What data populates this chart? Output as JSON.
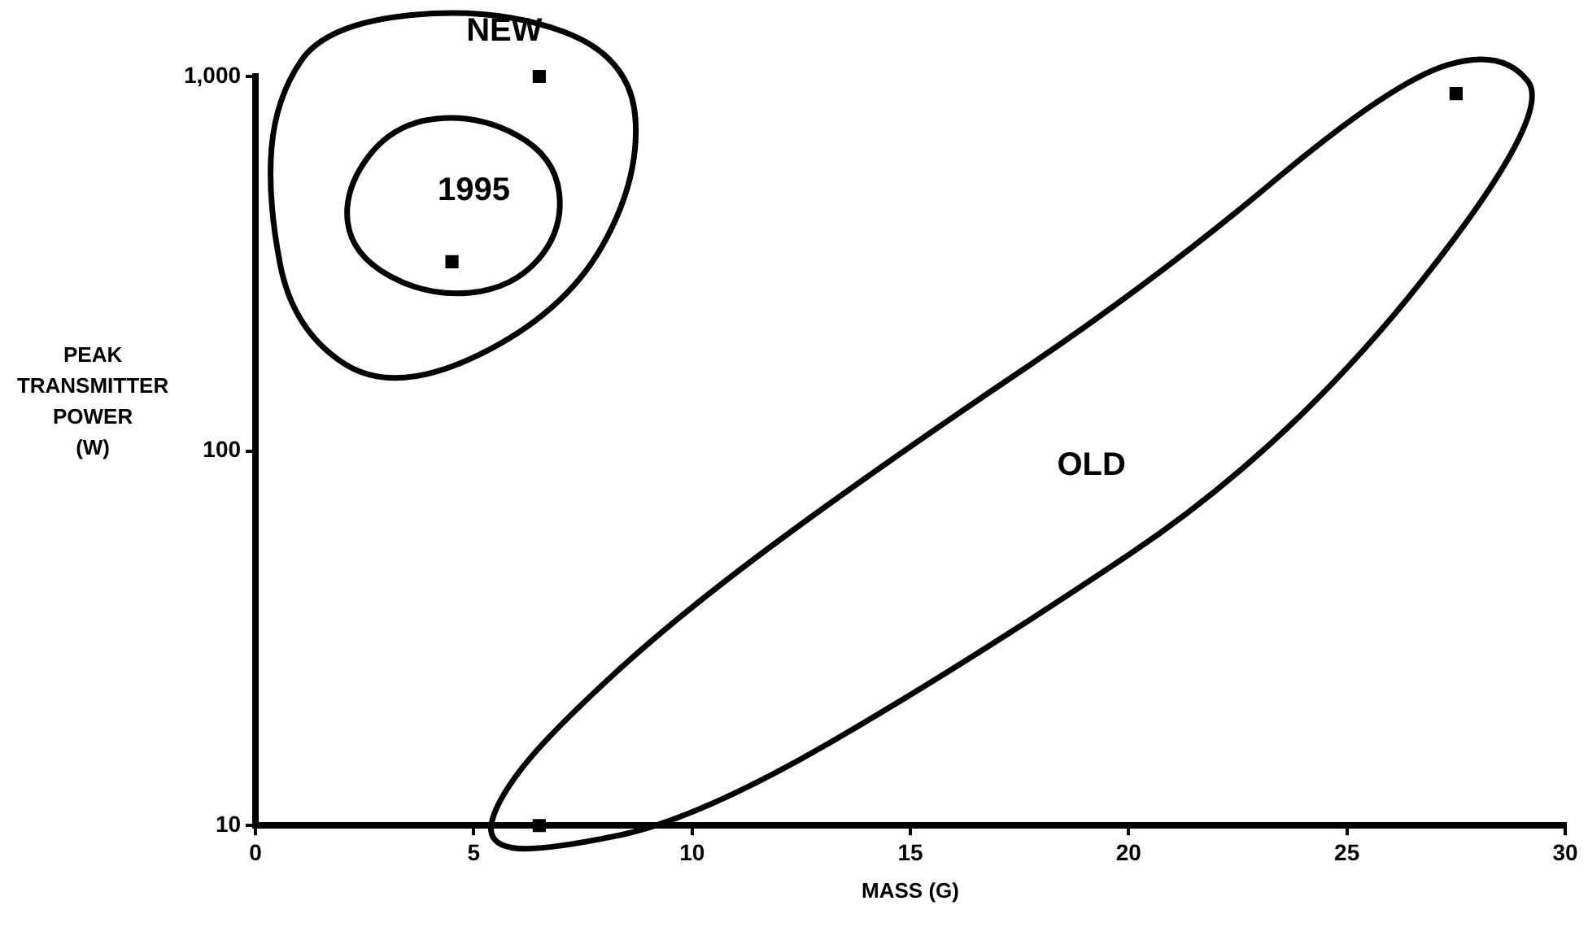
{
  "chart_data": {
    "type": "scatter",
    "xlabel": "MASS (G)",
    "ylabel": "PEAK TRANSMITTER POWER (W)",
    "x": [
      6.5,
      4.5,
      27.5,
      6.5
    ],
    "values": [
      1000,
      320,
      900,
      10
    ],
    "color": "#000000",
    "marker": "square",
    "log": "y",
    "xlim": [
      0,
      30
    ],
    "xticks": [
      0,
      5,
      10,
      15,
      20,
      25,
      30
    ],
    "ylim": [
      10,
      1000
    ],
    "yticks": [
      10,
      100,
      {
        "value": 1000,
        "label": "1,000"
      }
    ],
    "grid": false,
    "legend": false,
    "annotations": [
      "NEW",
      "1995",
      "OLD"
    ]
  }
}
